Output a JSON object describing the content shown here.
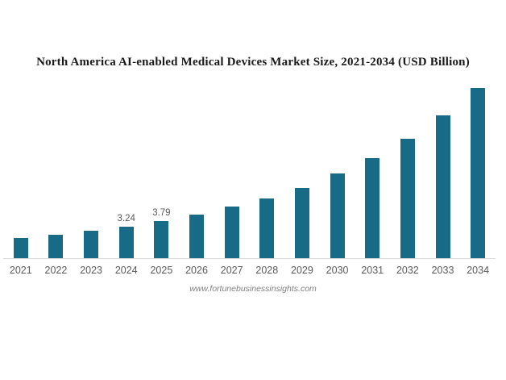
{
  "chart_data": {
    "type": "bar",
    "title": "North America AI-enabled Medical Devices Market Size, 2021-2034 (USD Billion)",
    "source_text": "www.fortunebusinessinsights.com",
    "xlabel": "",
    "ylabel": "",
    "categories": [
      "2021",
      "2022",
      "2023",
      "2024",
      "2025",
      "2026",
      "2027",
      "2028",
      "2029",
      "2030",
      "2031",
      "2032",
      "2033",
      "2034"
    ],
    "values": [
      2.05,
      2.38,
      2.78,
      3.24,
      3.79,
      4.42,
      5.23,
      6.1,
      7.18,
      8.6,
      10.18,
      12.15,
      14.55,
      17.36
    ],
    "data_labels": [
      "",
      "",
      "",
      "3.24",
      "3.79",
      "",
      "",
      "",
      "",
      "",
      "",
      "",
      "",
      ""
    ],
    "ylim": [
      0,
      17.5
    ],
    "grid": false,
    "legend": false,
    "colors": {
      "bar": "#176b87",
      "axis_line": "#d9d9d9",
      "tick_label": "#595959",
      "data_label": "#595959",
      "title": "#1a1a1a",
      "source": "#808080",
      "background": "#ffffff"
    }
  }
}
